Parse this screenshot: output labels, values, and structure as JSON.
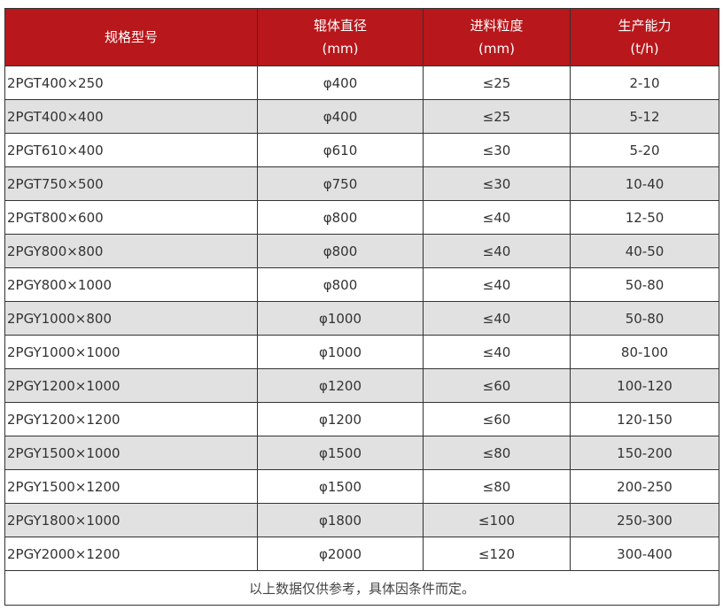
{
  "header": {
    "model": "规格型号",
    "roll_line1": "辊体直径",
    "roll_line2": "(mm)",
    "feed_line1": "进料粒度",
    "feed_line2": "(mm)",
    "cap_line1": "生产能力",
    "cap_line2": "(t/h)"
  },
  "rows": [
    [
      "2PGT400×250",
      "φ400",
      "≤25",
      "2-10"
    ],
    [
      "2PGT400×400",
      "φ400",
      "≤25",
      "5-12"
    ],
    [
      "2PGT610×400",
      "φ610",
      "≤30",
      "5-20"
    ],
    [
      "2PGT750×500",
      "φ750",
      "≤30",
      "10-40"
    ],
    [
      "2PGT800×600",
      "φ800",
      "≤40",
      "12-50"
    ],
    [
      "2PGY800×800",
      "φ800",
      "≤40",
      "40-50"
    ],
    [
      "2PGY800×1000",
      "φ800",
      "≤40",
      "50-80"
    ],
    [
      "2PGY1000×800",
      "φ1000",
      "≤40",
      "50-80"
    ],
    [
      "2PGY1000×1000",
      "φ1000",
      "≤40",
      "80-100"
    ],
    [
      "2PGY1200×1000",
      "φ1200",
      "≤60",
      "100-120"
    ],
    [
      "2PGY1200×1200",
      "φ1200",
      "≤60",
      "120-150"
    ],
    [
      "2PGY1500×1000",
      "φ1500",
      "≤80",
      "150-200"
    ],
    [
      "2PGY1500×1200",
      "φ1500",
      "≤80",
      "200-250"
    ],
    [
      "2PGY1800×1000",
      "φ1800",
      "≤100",
      "250-300"
    ],
    [
      "2PGY2000×1200",
      "φ2000",
      "≤120",
      "300-400"
    ]
  ],
  "footer": "以上数据仅供参考，具体因条件而定。",
  "colors": {
    "header_bg": "#b8171b",
    "alt_row": "#e1e1e1"
  }
}
